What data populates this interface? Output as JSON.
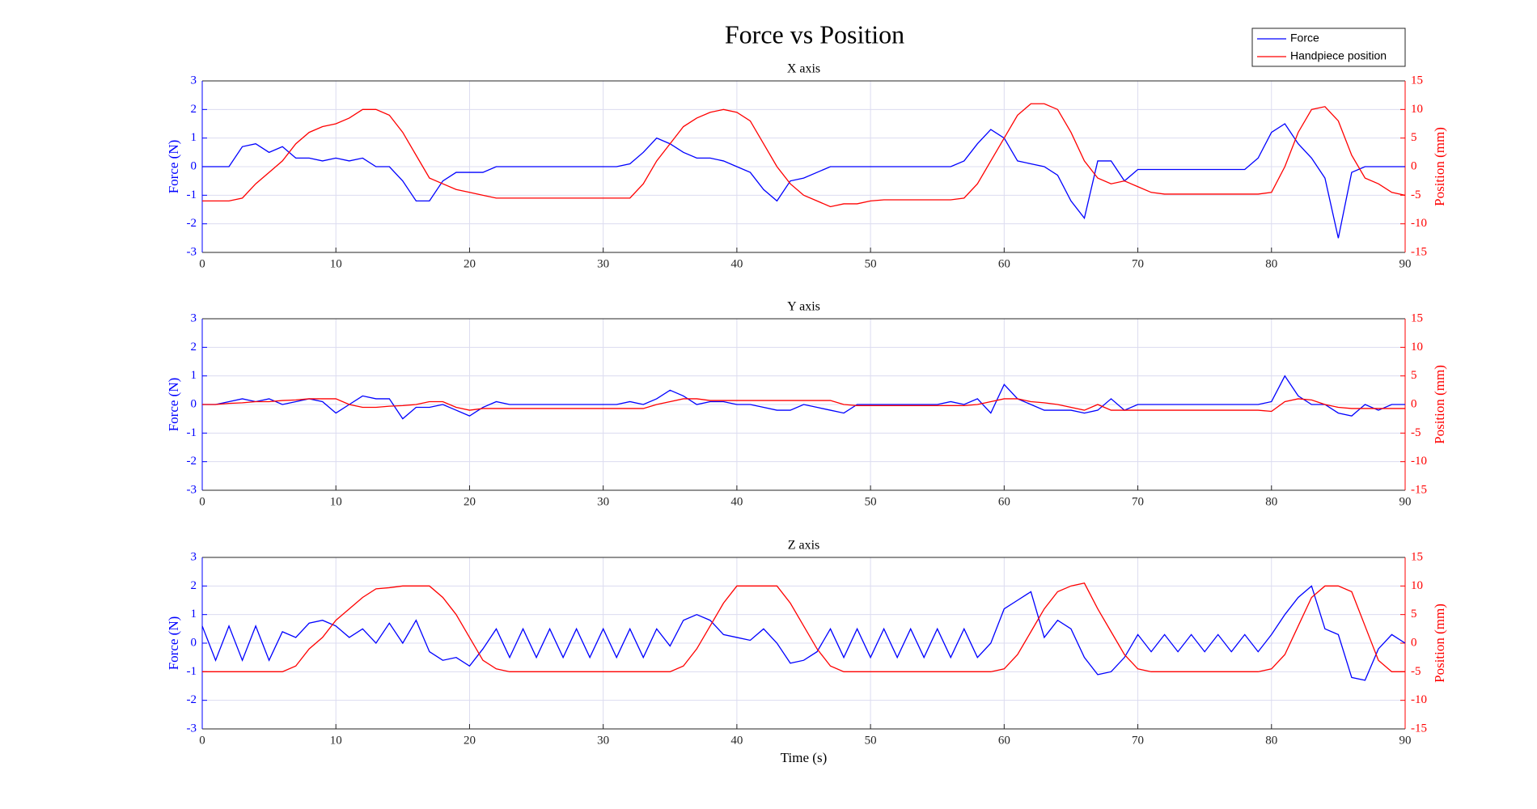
{
  "title": "Force vs Position",
  "chart_data": [
    {
      "type": "line",
      "title": "X axis",
      "ylabel": "Force (N)",
      "y2label": "Position (mm)",
      "x": [
        0,
        1,
        2,
        3,
        4,
        5,
        6,
        7,
        8,
        9,
        10,
        11,
        12,
        13,
        14,
        15,
        16,
        17,
        18,
        19,
        20,
        21,
        22,
        23,
        24,
        25,
        26,
        27,
        28,
        29,
        30,
        31,
        32,
        33,
        34,
        35,
        36,
        37,
        38,
        39,
        40,
        41,
        42,
        43,
        44,
        45,
        46,
        47,
        48,
        49,
        50,
        51,
        52,
        53,
        54,
        55,
        56,
        57,
        58,
        59,
        60,
        61,
        62,
        63,
        64,
        65,
        66,
        67,
        68,
        69,
        70,
        71,
        72,
        73,
        74,
        75,
        76,
        77,
        78,
        79,
        80,
        81,
        82,
        83,
        84,
        85,
        86,
        87,
        88,
        89,
        90
      ],
      "series": [
        {
          "name": "Force",
          "color": "#0000ff",
          "axis": "y",
          "values": [
            0,
            0,
            0,
            0.7,
            0.8,
            0.5,
            0.7,
            0.3,
            0.3,
            0.2,
            0.3,
            0.2,
            0.3,
            0,
            0,
            -0.5,
            -1.2,
            -1.2,
            -0.5,
            -0.2,
            -0.2,
            -0.2,
            0,
            0,
            0,
            0,
            0,
            0,
            0,
            0,
            0,
            0,
            0.1,
            0.5,
            1.0,
            0.8,
            0.5,
            0.3,
            0.3,
            0.2,
            0,
            -0.2,
            -0.8,
            -1.2,
            -0.5,
            -0.4,
            -0.2,
            0,
            0,
            0,
            0,
            0,
            0,
            0,
            0,
            0,
            0,
            0.2,
            0.8,
            1.3,
            1.0,
            0.2,
            0.1,
            0,
            -0.3,
            -1.2,
            -1.8,
            0.2,
            0.2,
            -0.5,
            -0.1,
            -0.1,
            -0.1,
            -0.1,
            -0.1,
            -0.1,
            -0.1,
            -0.1,
            -0.1,
            0.3,
            1.2,
            1.5,
            0.8,
            0.3,
            -0.4,
            -2.5,
            -0.2,
            0,
            0,
            0,
            0
          ]
        },
        {
          "name": "Handpiece position",
          "color": "#ff0000",
          "axis": "y2",
          "values": [
            -6,
            -6,
            -6,
            -5.5,
            -3,
            -1,
            1,
            4,
            6,
            7,
            7.5,
            8.5,
            10,
            10,
            9,
            6,
            2,
            -2,
            -3,
            -4,
            -4.5,
            -5,
            -5.5,
            -5.5,
            -5.5,
            -5.5,
            -5.5,
            -5.5,
            -5.5,
            -5.5,
            -5.5,
            -5.5,
            -5.5,
            -3,
            1,
            4,
            7,
            8.5,
            9.5,
            10,
            9.5,
            8,
            4,
            0,
            -3,
            -5,
            -6,
            -7,
            -6.5,
            -6.5,
            -6,
            -5.8,
            -5.8,
            -5.8,
            -5.8,
            -5.8,
            -5.8,
            -5.5,
            -3,
            1,
            5,
            9,
            11,
            11,
            10,
            6,
            1,
            -2,
            -3,
            -2.5,
            -3.5,
            -4.5,
            -4.8,
            -4.8,
            -4.8,
            -4.8,
            -4.8,
            -4.8,
            -4.8,
            -4.8,
            -4.5,
            0,
            6,
            10,
            10.5,
            8,
            2,
            -2,
            -3,
            -4.5,
            -5
          ]
        }
      ],
      "xlim": [
        0,
        90
      ],
      "xticks": [
        0,
        10,
        20,
        30,
        40,
        50,
        60,
        70,
        80,
        90
      ],
      "ylim": [
        -3,
        3
      ],
      "yticks": [
        -3,
        -2,
        -1,
        0,
        1,
        2,
        3
      ],
      "y2lim": [
        -15,
        15
      ],
      "y2ticks": [
        -15,
        -10,
        -5,
        0,
        5,
        10,
        15
      ],
      "grid": true
    },
    {
      "type": "line",
      "title": "Y axis",
      "ylabel": "Force (N)",
      "y2label": "Position (mm)",
      "x": [
        0,
        1,
        2,
        3,
        4,
        5,
        6,
        7,
        8,
        9,
        10,
        11,
        12,
        13,
        14,
        15,
        16,
        17,
        18,
        19,
        20,
        21,
        22,
        23,
        24,
        25,
        26,
        27,
        28,
        29,
        30,
        31,
        32,
        33,
        34,
        35,
        36,
        37,
        38,
        39,
        40,
        41,
        42,
        43,
        44,
        45,
        46,
        47,
        48,
        49,
        50,
        51,
        52,
        53,
        54,
        55,
        56,
        57,
        58,
        59,
        60,
        61,
        62,
        63,
        64,
        65,
        66,
        67,
        68,
        69,
        70,
        71,
        72,
        73,
        74,
        75,
        76,
        77,
        78,
        79,
        80,
        81,
        82,
        83,
        84,
        85,
        86,
        87,
        88,
        89,
        90
      ],
      "series": [
        {
          "name": "Force",
          "color": "#0000ff",
          "axis": "y",
          "values": [
            0,
            0,
            0.1,
            0.2,
            0.1,
            0.2,
            0,
            0.1,
            0.2,
            0.1,
            -0.3,
            0,
            0.3,
            0.2,
            0.2,
            -0.5,
            -0.1,
            -0.1,
            0,
            -0.2,
            -0.4,
            -0.1,
            0.1,
            0,
            0,
            0,
            0,
            0,
            0,
            0,
            0,
            0,
            0.1,
            0,
            0.2,
            0.5,
            0.3,
            0,
            0.1,
            0.1,
            0,
            0,
            -0.1,
            -0.2,
            -0.2,
            0,
            -0.1,
            -0.2,
            -0.3,
            0,
            0,
            0,
            0,
            0,
            0,
            0,
            0.1,
            0,
            0.2,
            -0.3,
            0.7,
            0.2,
            0,
            -0.2,
            -0.2,
            -0.2,
            -0.3,
            -0.2,
            0.2,
            -0.2,
            0,
            0,
            0,
            0,
            0,
            0,
            0,
            0,
            0,
            0,
            0.1,
            1.0,
            0.3,
            0,
            0,
            -0.3,
            -0.4,
            0,
            -0.2,
            0,
            0
          ]
        },
        {
          "name": "Handpiece position",
          "color": "#ff0000",
          "axis": "y2",
          "values": [
            0,
            0,
            0.2,
            0.3,
            0.5,
            0.5,
            0.7,
            0.8,
            1,
            1,
            1,
            0,
            -0.5,
            -0.5,
            -0.3,
            -0.2,
            0,
            0.5,
            0.5,
            -0.5,
            -1,
            -0.7,
            -0.7,
            -0.7,
            -0.7,
            -0.7,
            -0.7,
            -0.7,
            -0.7,
            -0.7,
            -0.7,
            -0.7,
            -0.7,
            -0.7,
            0,
            0.5,
            1,
            1,
            0.7,
            0.7,
            0.7,
            0.7,
            0.7,
            0.7,
            0.7,
            0.7,
            0.7,
            0.7,
            0,
            -0.2,
            -0.2,
            -0.2,
            -0.2,
            -0.2,
            -0.2,
            -0.2,
            -0.2,
            -0.2,
            0,
            0.5,
            1,
            1,
            0.5,
            0.3,
            0,
            -0.5,
            -1,
            0,
            -1,
            -1,
            -1,
            -1,
            -1,
            -1,
            -1,
            -1,
            -1,
            -1,
            -1,
            -1,
            -1.2,
            0.5,
            1,
            0.8,
            0,
            -0.5,
            -0.7,
            -0.7,
            -0.7,
            -0.7,
            -0.7
          ]
        }
      ],
      "xlim": [
        0,
        90
      ],
      "xticks": [
        0,
        10,
        20,
        30,
        40,
        50,
        60,
        70,
        80,
        90
      ],
      "ylim": [
        -3,
        3
      ],
      "yticks": [
        -3,
        -2,
        -1,
        0,
        1,
        2,
        3
      ],
      "y2lim": [
        -15,
        15
      ],
      "y2ticks": [
        -15,
        -10,
        -5,
        0,
        5,
        10,
        15
      ],
      "grid": true
    },
    {
      "type": "line",
      "title": "Z axis",
      "ylabel": "Force (N)",
      "y2label": "Position (mm)",
      "xlabel": "Time (s)",
      "x": [
        0,
        1,
        2,
        3,
        4,
        5,
        6,
        7,
        8,
        9,
        10,
        11,
        12,
        13,
        14,
        15,
        16,
        17,
        18,
        19,
        20,
        21,
        22,
        23,
        24,
        25,
        26,
        27,
        28,
        29,
        30,
        31,
        32,
        33,
        34,
        35,
        36,
        37,
        38,
        39,
        40,
        41,
        42,
        43,
        44,
        45,
        46,
        47,
        48,
        49,
        50,
        51,
        52,
        53,
        54,
        55,
        56,
        57,
        58,
        59,
        60,
        61,
        62,
        63,
        64,
        65,
        66,
        67,
        68,
        69,
        70,
        71,
        72,
        73,
        74,
        75,
        76,
        77,
        78,
        79,
        80,
        81,
        82,
        83,
        84,
        85,
        86,
        87,
        88,
        89,
        90
      ],
      "series": [
        {
          "name": "Force",
          "color": "#0000ff",
          "axis": "y",
          "values": [
            0.6,
            -0.6,
            0.6,
            -0.6,
            0.6,
            -0.6,
            0.4,
            0.2,
            0.7,
            0.8,
            0.6,
            0.2,
            0.5,
            0,
            0.7,
            0,
            0.8,
            -0.3,
            -0.6,
            -0.5,
            -0.8,
            -0.2,
            0.5,
            -0.5,
            0.5,
            -0.5,
            0.5,
            -0.5,
            0.5,
            -0.5,
            0.5,
            -0.5,
            0.5,
            -0.5,
            0.5,
            -0.1,
            0.8,
            1.0,
            0.8,
            0.3,
            0.2,
            0.1,
            0.5,
            0,
            -0.7,
            -0.6,
            -0.3,
            0.5,
            -0.5,
            0.5,
            -0.5,
            0.5,
            -0.5,
            0.5,
            -0.5,
            0.5,
            -0.5,
            0.5,
            -0.5,
            0,
            1.2,
            1.5,
            1.8,
            0.2,
            0.8,
            0.5,
            -0.5,
            -1.1,
            -1.0,
            -0.5,
            0.3,
            -0.3,
            0.3,
            -0.3,
            0.3,
            -0.3,
            0.3,
            -0.3,
            0.3,
            -0.3,
            0.3,
            1.0,
            1.6,
            2.0,
            0.5,
            0.3,
            -1.2,
            -1.3,
            -0.2,
            0.3,
            0
          ]
        },
        {
          "name": "Handpiece position",
          "color": "#ff0000",
          "axis": "y2",
          "values": [
            -5,
            -5,
            -5,
            -5,
            -5,
            -5,
            -5,
            -4,
            -1,
            1,
            4,
            6,
            8,
            9.5,
            9.7,
            10,
            10,
            10,
            8,
            5,
            1,
            -3,
            -4.5,
            -5,
            -5,
            -5,
            -5,
            -5,
            -5,
            -5,
            -5,
            -5,
            -5,
            -5,
            -5,
            -5,
            -4,
            -1,
            3,
            7,
            10,
            10,
            10,
            10,
            7,
            3,
            -1,
            -4,
            -5,
            -5,
            -5,
            -5,
            -5,
            -5,
            -5,
            -5,
            -5,
            -5,
            -5,
            -5,
            -4.5,
            -2,
            2,
            6,
            9,
            10,
            10.5,
            6,
            2,
            -2,
            -4.5,
            -5,
            -5,
            -5,
            -5,
            -5,
            -5,
            -5,
            -5,
            -5,
            -4.5,
            -2,
            3,
            8,
            10,
            10,
            9,
            3,
            -3,
            -5,
            -5
          ]
        }
      ],
      "xlim": [
        0,
        90
      ],
      "xticks": [
        0,
        10,
        20,
        30,
        40,
        50,
        60,
        70,
        80,
        90
      ],
      "ylim": [
        -3,
        3
      ],
      "yticks": [
        -3,
        -2,
        -1,
        0,
        1,
        2,
        3
      ],
      "y2lim": [
        -15,
        15
      ],
      "y2ticks": [
        -15,
        -10,
        -5,
        0,
        5,
        10,
        15
      ],
      "grid": true
    }
  ]
}
